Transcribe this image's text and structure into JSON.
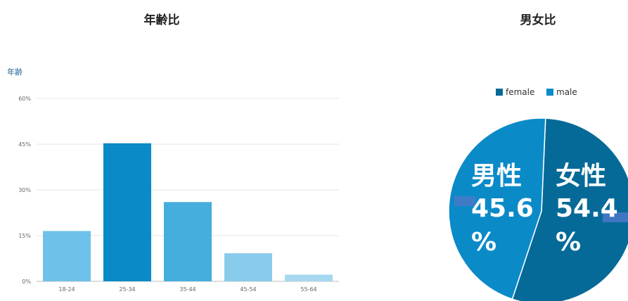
{
  "titles": {
    "age": "年齢比",
    "gender": "男女比"
  },
  "chart_data": [
    {
      "type": "bar",
      "title": "年齢比",
      "ylabel": "年齢",
      "xlabel": "",
      "categories": [
        "18-24",
        "25-34",
        "35-44",
        "45-54",
        "55-64"
      ],
      "values": [
        16.5,
        45.3,
        26.0,
        9.2,
        2.2
      ],
      "colors": [
        "#6ec1e8",
        "#0a8ac6",
        "#45aedc",
        "#88cbea",
        "#a6d8ef"
      ],
      "ylim": [
        0,
        60
      ],
      "yticks": [
        0,
        15,
        30,
        45,
        60
      ],
      "ytick_suffix": "%",
      "grid": true
    },
    {
      "type": "pie",
      "title": "男女比",
      "legend_position": "top",
      "slices": [
        {
          "name": "female",
          "value": 54.4,
          "color": "#066a98"
        },
        {
          "name": "male",
          "value": 45.6,
          "color": "#0b8ac8"
        }
      ],
      "overlay_labels": [
        {
          "line1": "男性",
          "line2": "45.6",
          "line3": "%"
        },
        {
          "line1": "女性",
          "line2": "54.4",
          "line3": "%"
        }
      ]
    }
  ]
}
